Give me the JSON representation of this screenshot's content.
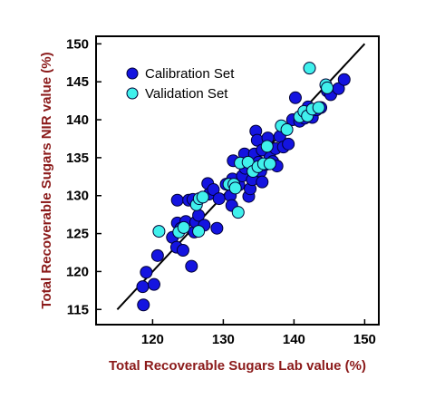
{
  "chart_data": {
    "type": "scatter",
    "xlabel": "Total Recoverable Sugars Lab value (%)",
    "ylabel": "Total Recoverable Sugars NIR value (%)",
    "xlim": [
      112,
      152
    ],
    "ylim": [
      113,
      151
    ],
    "xticks": [
      120,
      130,
      140,
      150
    ],
    "yticks": [
      115,
      120,
      125,
      130,
      135,
      140,
      145,
      150
    ],
    "legend_position": "top-left",
    "reference_line": {
      "x": [
        115,
        150
      ],
      "y": [
        115,
        150
      ]
    },
    "series": [
      {
        "name": "Calibration Set",
        "color": "#1414e0",
        "points": [
          [
            118.7,
            115.6
          ],
          [
            118.6,
            118.0
          ],
          [
            119.1,
            119.9
          ],
          [
            120.2,
            118.3
          ],
          [
            120.7,
            122.1
          ],
          [
            122.8,
            124.5
          ],
          [
            123.5,
            129.4
          ],
          [
            123.5,
            126.4
          ],
          [
            123.4,
            123.2
          ],
          [
            124.0,
            125.7
          ],
          [
            124.3,
            122.8
          ],
          [
            124.7,
            126.6
          ],
          [
            125.1,
            129.4
          ],
          [
            125.7,
            129.5
          ],
          [
            125.5,
            120.7
          ],
          [
            125.9,
            125.2
          ],
          [
            126.1,
            126.5
          ],
          [
            126.5,
            127.4
          ],
          [
            127.3,
            126.1
          ],
          [
            127.8,
            131.6
          ],
          [
            128.0,
            130.2
          ],
          [
            128.6,
            130.8
          ],
          [
            129.1,
            125.7
          ],
          [
            129.4,
            129.6
          ],
          [
            130.4,
            131.5
          ],
          [
            131.0,
            130.0
          ],
          [
            131.2,
            128.7
          ],
          [
            131.3,
            132.2
          ],
          [
            131.4,
            134.6
          ],
          [
            132.2,
            131.4
          ],
          [
            132.7,
            132.6
          ],
          [
            133.0,
            135.5
          ],
          [
            133.1,
            133.6
          ],
          [
            133.6,
            129.9
          ],
          [
            133.8,
            130.9
          ],
          [
            134.1,
            132.1
          ],
          [
            134.4,
            135.5
          ],
          [
            134.6,
            138.5
          ],
          [
            134.8,
            137.3
          ],
          [
            135.0,
            134.4
          ],
          [
            135.3,
            133.2
          ],
          [
            135.5,
            136.0
          ],
          [
            135.5,
            131.8
          ],
          [
            136.0,
            134.1
          ],
          [
            136.3,
            137.6
          ],
          [
            136.6,
            135.0
          ],
          [
            137.0,
            134.5
          ],
          [
            137.4,
            136.2
          ],
          [
            137.6,
            133.9
          ],
          [
            138.0,
            137.8
          ],
          [
            138.5,
            136.4
          ],
          [
            139.2,
            136.8
          ],
          [
            139.8,
            140.0
          ],
          [
            140.2,
            142.9
          ],
          [
            140.8,
            139.8
          ],
          [
            141.5,
            140.2
          ],
          [
            142.0,
            141.7
          ],
          [
            142.6,
            140.3
          ],
          [
            143.2,
            141.3
          ],
          [
            143.8,
            141.6
          ],
          [
            144.7,
            143.8
          ],
          [
            145.2,
            143.3
          ],
          [
            146.3,
            144.1
          ],
          [
            147.1,
            145.3
          ]
        ]
      },
      {
        "name": "Validation Set",
        "color": "#40f0ec",
        "points": [
          [
            120.9,
            125.3
          ],
          [
            123.7,
            125.2
          ],
          [
            124.4,
            125.8
          ],
          [
            126.2,
            128.8
          ],
          [
            126.6,
            129.6
          ],
          [
            126.5,
            125.3
          ],
          [
            127.1,
            129.8
          ],
          [
            130.8,
            131.5
          ],
          [
            131.5,
            131.5
          ],
          [
            131.7,
            131.0
          ],
          [
            132.1,
            127.8
          ],
          [
            132.4,
            134.3
          ],
          [
            133.5,
            134.4
          ],
          [
            134.2,
            133.2
          ],
          [
            134.9,
            133.8
          ],
          [
            135.7,
            134.2
          ],
          [
            136.2,
            136.5
          ],
          [
            136.6,
            134.2
          ],
          [
            138.2,
            139.2
          ],
          [
            139.0,
            138.7
          ],
          [
            140.8,
            140.4
          ],
          [
            141.4,
            141.1
          ],
          [
            141.9,
            140.5
          ],
          [
            142.2,
            146.8
          ],
          [
            142.6,
            141.4
          ],
          [
            143.5,
            141.6
          ],
          [
            144.5,
            144.6
          ],
          [
            144.7,
            144.2
          ]
        ]
      }
    ]
  }
}
